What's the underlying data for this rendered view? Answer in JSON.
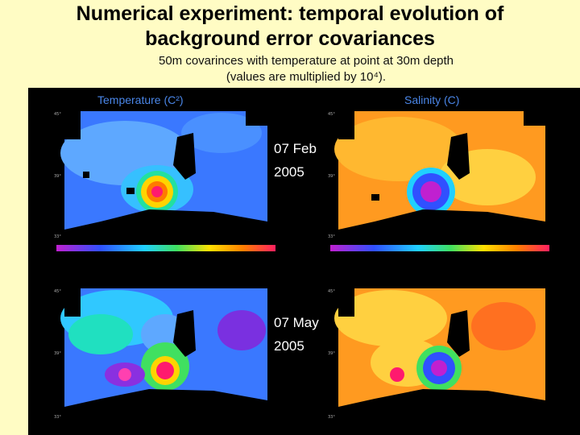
{
  "slide": {
    "title_line1": "Numerical experiment: temporal evolution of",
    "title_line2": "background error covariances",
    "subtitle_line1": "50m covarinces with temperature at point at 30m depth",
    "subtitle_line2": "(values are multiplied by 10⁴)."
  },
  "panels": {
    "left_label": "Temperature (C²)",
    "right_label": "Salinity (C)",
    "row1_date": "07 Feb\n2005",
    "row2_date": "07 May\n2005"
  },
  "colors": {
    "background": "#fffcc4",
    "panel": "#000000",
    "label_blue": "#4a86e8"
  }
}
